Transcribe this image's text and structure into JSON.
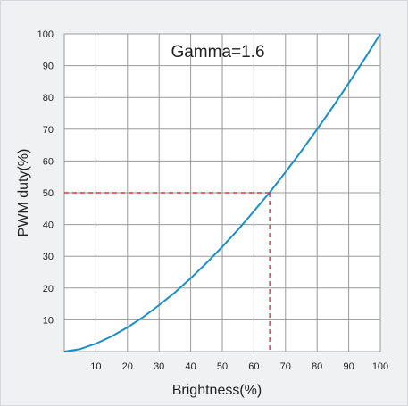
{
  "chart_data": {
    "type": "line",
    "title": "",
    "annotation": "Gamma=1.6",
    "xlabel": "Brightness(%)",
    "ylabel": "PWM duty(%)",
    "xlim": [
      0,
      100
    ],
    "ylim": [
      0,
      100
    ],
    "x_ticks": [
      10,
      20,
      30,
      40,
      50,
      60,
      70,
      80,
      90,
      100
    ],
    "y_ticks": [
      10,
      20,
      30,
      40,
      50,
      60,
      70,
      80,
      90,
      100
    ],
    "grid": true,
    "legend": "none",
    "series": [
      {
        "x": [
          0,
          5,
          10,
          15,
          20,
          25,
          30,
          35,
          40,
          45,
          50,
          55,
          60,
          65,
          70,
          75,
          80,
          85,
          90,
          95,
          100
        ],
        "values": [
          0,
          0.8,
          2.5,
          4.8,
          7.6,
          10.9,
          14.6,
          18.6,
          23.1,
          27.9,
          33.0,
          38.4,
          44.2,
          50.1,
          56.5,
          63.1,
          70.0,
          77.1,
          84.5,
          92.1,
          100
        ],
        "color": "#1a8fc7"
      }
    ],
    "reference_lines": {
      "x": 65,
      "y": 50,
      "color": "#d9363e"
    }
  }
}
